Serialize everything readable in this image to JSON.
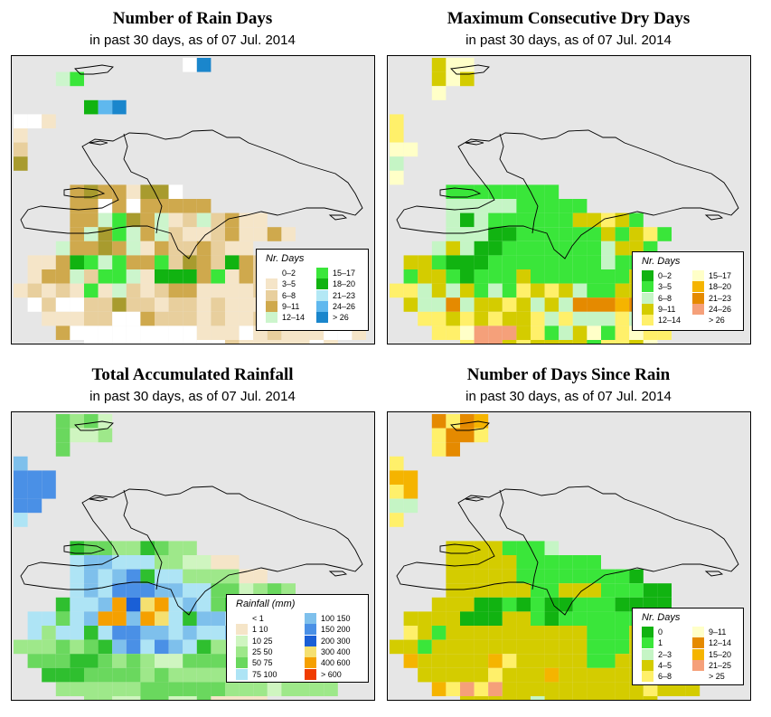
{
  "palettes": {
    "raindays": [
      "#ffffff",
      "#f5e5c8",
      "#e8cf9d",
      "#cfa94d",
      "#a89b2e",
      "#ccf5cc",
      "#3ae63a",
      "#11b311",
      "#b3e8f5",
      "#5fb8ee",
      "#1a86cc"
    ],
    "dry": [
      "#11b311",
      "#3ae63a",
      "#c5f5c5",
      "#d4cc00",
      "#fff06a",
      "#ffffc8",
      "#f5b400",
      "#e58a00",
      "#f5a07a",
      "#ffffff"
    ],
    "rain": [
      "#ffffff",
      "#f5e5c8",
      "#cff5c0",
      "#9ee88a",
      "#6ad85e",
      "#2fbf2f",
      "#aee4f5",
      "#7ec0ec",
      "#4a90e6",
      "#1a5fd6",
      "#f5e070",
      "#f5a000",
      "#f03c00"
    ],
    "since": [
      "#11b311",
      "#3ae63a",
      "#c5f5c5",
      "#d4cc00",
      "#fff06a",
      "#e58a00",
      "#f5b400",
      "#f5a07a",
      "#ffffff"
    ]
  },
  "panels": [
    {
      "id": "raindays",
      "title": "Number of Rain Days",
      "subtitle": "in past 30 days, as of  07 Jul. 2014",
      "legend": {
        "title": "Nr. Days",
        "items": [
          {
            "label": "0–2",
            "color": "#ffffff"
          },
          {
            "label": "3–5",
            "color": "#f5e5c8"
          },
          {
            "label": "6–8",
            "color": "#e8cf9d"
          },
          {
            "label": "9–11",
            "color": "#cfa94d"
          },
          {
            "label": "12–14",
            "color": "#ccf5cc"
          },
          {
            "label": "15–17",
            "color": "#3ae63a"
          },
          {
            "label": "18–20",
            "color": "#11b311"
          },
          {
            "label": "21–23",
            "color": "#b3e8f5"
          },
          {
            "label": "24–26",
            "color": "#5fb8ee"
          },
          {
            "label": "> 26",
            "color": "#1a86cc"
          }
        ]
      },
      "cells": [
        "0,12,0,10",
        "1,3,11,1",
        "1,3,5,6,11",
        "3,5,7,9,10,11",
        "4,0,0,0,1",
        "5,0,1",
        "6,0,2",
        "7,0,4",
        "9,4,3,4,3,3,1,4,4,0",
        "10,4,3,3,0,3,0,0,3,3,3,3",
        "11,4,3,5,5,6,5,3,5,1,2,5,2,3,1,1",
        "12,4,3,5,6,6,5,3,5,2,1,1,2,3,1,1,3,1",
        "13,3,5,3,3,6,3,5,1,3,2,2,3,2,1,1",
        "14,1,1,1,3,7,6,5,6,3,1,6,2,3,3,2,7,3,2,1,1,3,1",
        "15,1,1,3,3,5,2,6,6,5,1,7,7,7,5,6,1,3,2,2,3,1,1",
        "16,0,1,2,1,2,1,6,1,5,2,1,2,3,2,1,1,1,1,2,3,1",
        "17,1,0,2,0,0,2,2,2,2,2,1,2,2,1,2,1,1,1,2,2,2,1,1,1,2",
        "18,2,1,1,1,2,2,0,0,1,2,2,2,1,2,1,1,2,2,1,2,1,1,0,0",
        "19,3,3,0,0,0,0,0,0,0,0,0,1,1,1,0,1,2,1,1,1,0,0,1",
        "20,5,0,0,0,0,0,0,0,0,0,0,2,1,1,1,1,1,0,1",
        "21,11,1,1,1,1,1",
        "22,11,1,1,1",
        "23,11,1,1"
      ],
      "overrides": [
        [
          11,
          5,
          3
        ],
        [
          12,
          6,
          4
        ],
        [
          13,
          6,
          4
        ],
        [
          11,
          8,
          4
        ],
        [
          12,
          9,
          3
        ],
        [
          13,
          10,
          3
        ],
        [
          10,
          9,
          3
        ],
        [
          14,
          9,
          3
        ],
        [
          15,
          13,
          3
        ],
        [
          16,
          12,
          3
        ],
        [
          14,
          12,
          4
        ],
        [
          17,
          7,
          4
        ],
        [
          18,
          9,
          3
        ]
      ],
      "show_island": true
    },
    {
      "id": "dry",
      "title": "Maximum Consecutive Dry Days",
      "subtitle": "in past 30 days, as of  07 Jul. 2014",
      "legend": {
        "title": "Nr. Days",
        "items": [
          {
            "label": "0–2",
            "color": "#11b311"
          },
          {
            "label": "3–5",
            "color": "#3ae63a"
          },
          {
            "label": "6–8",
            "color": "#c5f5c5"
          },
          {
            "label": "9–11",
            "color": "#d4cc00"
          },
          {
            "label": "12–14",
            "color": "#fff06a"
          },
          {
            "label": "15–17",
            "color": "#ffffc8"
          },
          {
            "label": "18–20",
            "color": "#f5b400"
          },
          {
            "label": "21–23",
            "color": "#e58a00"
          },
          {
            "label": "24–26",
            "color": "#f5a07a"
          },
          {
            "label": "> 26",
            "color": "#ffffff"
          }
        ]
      },
      "cells": [
        "0,3,3,5,5",
        "1,3,3,5,3",
        "2,3,5",
        "4,0,4",
        "5,0,4",
        "6,0,5,5",
        "7,0,2",
        "8,0,5",
        "9,4,1,1,1,1,1,1,1,1",
        "10,4,2,2,2,2,2,1,1,1,1,1",
        "11,4,2,0,2,1,1,1,1,1,1,3,3,4,3,1",
        "12,4,2,2,2,0,0,1,1,1,1,1,1,3,1,3,4,1",
        "13,3,2,3,2,0,0,1,1,1,1,1,1,1,2,3,3,1",
        "14,1,3,3,1,0,0,0,1,1,1,1,1,1,1,1,2,1,1,3,3,5",
        "15,1,1,3,3,1,0,1,1,1,3,1,1,1,1,1,1,1,3,1,4,3,3",
        "16,0,4,4,2,3,2,3,1,2,1,4,3,4,3,2,1,1,3,3,3,6,1",
        "17,1,3,2,2,7,2,3,3,4,3,2,3,2,7,7,7,6,7,7,3,7,2,2,3,2",
        "18,2,4,4,3,4,3,4,3,3,4,2,4,2,2,2,4,2,3,2,3,2,2",
        "19,3,4,4,5,8,8,8,3,4,1,2,3,5,1,4,5,4,4",
        "20,5,4,8,8,3,4,3,3,3,3,1,4,4,3,5",
        "21,11,1,9,9,1,1",
        "22,11,4,4,3",
        "23,11,4,4"
      ],
      "overrides": [],
      "show_island": true
    },
    {
      "id": "rain",
      "title": "Total Accumulated Rainfall",
      "subtitle": "in past 30 days, as of  07 Jul. 2014",
      "legend": {
        "title": "Rainfall (mm)",
        "items": [
          {
            "label": "< 1",
            "color": "#ffffff"
          },
          {
            "label": "1    10",
            "color": "#f5e5c8"
          },
          {
            "label": "10    25",
            "color": "#cff5c0"
          },
          {
            "label": "25    50",
            "color": "#9ee88a"
          },
          {
            "label": "50    75",
            "color": "#6ad85e"
          },
          {
            "label": "75  100",
            "color": "#aee4f5"
          },
          {
            "label": "100  150",
            "color": "#7ec0ec"
          },
          {
            "label": "150  200",
            "color": "#4a90e6"
          },
          {
            "label": "200  300",
            "color": "#1a5fd6"
          },
          {
            "label": "300  400",
            "color": "#f5e070"
          },
          {
            "label": "400  600",
            "color": "#f5a000"
          },
          {
            "label": "> 600",
            "color": "#f03c00"
          }
        ]
      },
      "cells": [
        "0,3,4,3,4,2",
        "1,3,4,2,2,3",
        "2,3,4",
        "3,0,7",
        "4,0,8,8,8",
        "5,0,8,8,8",
        "6,0,8,8",
        "7,0,6",
        "9,4,5,4,4,3,3,5,4,3,3",
        "10,4,6,7,7,6,6,6,3,3,2,2,1,1",
        "11,4,6,7,6,7,8,5,6,6,3,3,3,3,1,1",
        "12,4,6,7,6,8,8,8,7,7,6,6,4,4,2,3,4,3",
        "13,3,5,6,6,7,11,9,8,7,6,7,6,4,5,4,3,3,3",
        "14,1,6,6,4,6,7,11,11,7,8,7,6,5,7,7,6,7,7,6,4,3,3,2",
        "15,1,6,3,6,6,5,6,8,8,7,7,6,7,6,6,7,7,6,6,4,3,2,2",
        "16,0,3,3,3,4,3,4,5,7,8,6,8,7,6,5,3,3,3,3,3,3,3,4",
        "17,1,4,4,4,5,5,4,3,4,3,2,2,4,4,4,4,4,4,4,4,4,3,3,3,4",
        "18,2,5,5,5,4,4,4,4,3,4,3,3,3,3,3,3,3,3,3,3,3,3",
        "19,3,3,3,3,3,3,3,4,4,4,4,4,4,3,3,3,2,3,3,3,3",
        "20,5,3,3,2,2,4,4,2,2,4,1,1,1,1",
        "21,11,1,1,2,2,1",
        "22,11,1,1,1",
        "23,11,1,1"
      ],
      "overrides": [
        [
          13,
          9,
          10
        ],
        [
          14,
          9,
          11
        ],
        [
          14,
          10,
          10
        ],
        [
          13,
          10,
          11
        ]
      ],
      "show_island": true
    },
    {
      "id": "since",
      "title": "Number of Days Since Rain",
      "subtitle": "in past 30 days, as of  07 Jul. 2014",
      "legend": {
        "title": "Nr. Days",
        "items": [
          {
            "label": "0",
            "color": "#11b311"
          },
          {
            "label": "1",
            "color": "#3ae63a"
          },
          {
            "label": "2–3",
            "color": "#c5f5c5"
          },
          {
            "label": "4–5",
            "color": "#d4cc00"
          },
          {
            "label": "6–8",
            "color": "#fff06a"
          },
          {
            "label": "9–11",
            "color": "#ffffc8"
          },
          {
            "label": "12–14",
            "color": "#e58a00"
          },
          {
            "label": "15–20",
            "color": "#f5b400"
          },
          {
            "label": "21–25",
            "color": "#f5a07a"
          },
          {
            "label": "> 25",
            "color": "#ffffff"
          }
        ]
      },
      "cells": [
        "0,3,5,4,5,6",
        "1,3,4,5,5,4",
        "2,3,4,5",
        "3,0,4",
        "4,0,6,6",
        "5,0,4,6",
        "6,0,2,2",
        "7,0,4",
        "9,4,3,3,3,3,1,1,1,2",
        "10,4,3,3,3,3,3,1,1,1,1,1,1",
        "11,4,3,3,3,3,3,1,1,1,1,1,1,1,1,0",
        "12,4,3,3,3,3,3,3,1,1,3,3,3,1,1,1,0,0",
        "13,3,3,3,3,0,0,1,0,1,0,0,1,1,1,0,0,0,0",
        "14,1,3,3,3,3,0,0,0,3,3,1,0,1,1,1,1,1,1,3,3,1,1",
        "15,1,4,3,1,3,3,3,3,3,3,3,3,3,3,1,1,1,3,3,1,4,5",
        "16,0,3,3,1,3,3,3,3,3,3,3,3,3,3,3,1,1,1,3,3,4,3,6",
        "17,1,6,3,3,3,3,3,6,4,3,3,3,3,3,1,1,3,3,4,3,3,4,3,1",
        "18,2,3,3,3,3,3,4,3,3,3,6,3,3,3,3,3,3,3,3,3,3,8,7",
        "19,3,6,4,7,4,7,3,3,3,3,3,3,3,3,3,3,4,3,3,3",
        "20,5,3,3,3,3,3,2,3,3,3,3,3,3,3,3",
        "21,11,3,3,3,3,3",
        "22,11,6,2,3",
        "23,11,5,3"
      ],
      "overrides": [],
      "show_island": true
    }
  ]
}
